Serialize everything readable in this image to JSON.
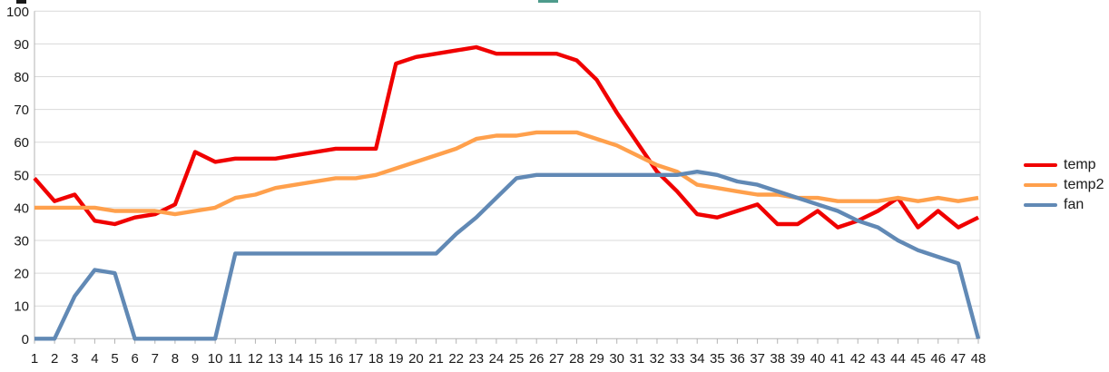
{
  "page": {
    "background": "#ffffff"
  },
  "artifacts": {
    "top_left_cropped_mark_color": "#1a1a1a",
    "top_center_cropped_mark_color": "#4e9b8c"
  },
  "chart_data": {
    "type": "line",
    "x": [
      1,
      2,
      3,
      4,
      5,
      6,
      7,
      8,
      9,
      10,
      11,
      12,
      13,
      14,
      15,
      16,
      17,
      18,
      19,
      20,
      21,
      22,
      23,
      24,
      25,
      26,
      27,
      28,
      29,
      30,
      31,
      32,
      33,
      34,
      35,
      36,
      37,
      38,
      39,
      40,
      41,
      42,
      43,
      44,
      45,
      46,
      47,
      48
    ],
    "series": [
      {
        "name": "temp",
        "color": "#f00000",
        "values": [
          49,
          42,
          44,
          36,
          35,
          37,
          38,
          41,
          57,
          54,
          55,
          55,
          55,
          56,
          57,
          58,
          58,
          58,
          84,
          86,
          87,
          88,
          89,
          87,
          87,
          87,
          87,
          85,
          79,
          69,
          60,
          51,
          45,
          38,
          37,
          39,
          41,
          35,
          35,
          39,
          34,
          36,
          39,
          43,
          34,
          39,
          34,
          37
        ]
      },
      {
        "name": "temp2",
        "color": "#ffa04c",
        "values": [
          40,
          40,
          40,
          40,
          39,
          39,
          39,
          38,
          39,
          40,
          43,
          44,
          46,
          47,
          48,
          49,
          49,
          50,
          52,
          54,
          56,
          58,
          61,
          62,
          62,
          63,
          63,
          63,
          61,
          59,
          56,
          53,
          51,
          47,
          46,
          45,
          44,
          44,
          43,
          43,
          42,
          42,
          42,
          43,
          42,
          43,
          42,
          43
        ]
      },
      {
        "name": "fan",
        "color": "#6189b5",
        "values": [
          0,
          0,
          13,
          21,
          20,
          0,
          0,
          0,
          0,
          0,
          26,
          26,
          26,
          26,
          26,
          26,
          26,
          26,
          26,
          26,
          26,
          32,
          37,
          43,
          49,
          50,
          50,
          50,
          50,
          50,
          50,
          50,
          50,
          51,
          50,
          48,
          47,
          45,
          43,
          41,
          39,
          36,
          34,
          30,
          27,
          25,
          23,
          0
        ]
      }
    ],
    "title": "",
    "xlabel": "",
    "ylabel": "",
    "ylim": [
      0,
      100
    ],
    "yticks": [
      0,
      10,
      20,
      30,
      40,
      50,
      60,
      70,
      80,
      90,
      100
    ],
    "grid": "horizontal",
    "grid_color": "#d9d9d9",
    "axis_color": "#b3b3b3",
    "label_color": "#1a1a1a",
    "legend_position": "right",
    "legend_labels": [
      "temp",
      "temp2",
      "fan"
    ]
  }
}
